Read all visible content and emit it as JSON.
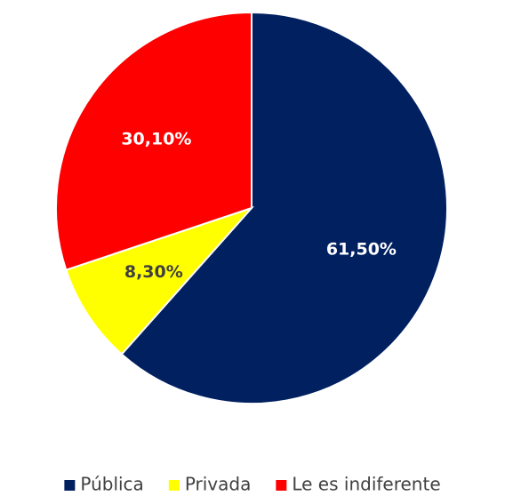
{
  "chart_data": {
    "type": "pie",
    "categories": [
      "Pública",
      "Privada",
      "Le es indiferente"
    ],
    "values": [
      61.5,
      8.3,
      30.1
    ],
    "value_labels": [
      "61,50%",
      "8,30%",
      "30,10%"
    ],
    "colors": [
      "#002060",
      "#ffff00",
      "#ff0000"
    ],
    "legend": "bottom"
  }
}
